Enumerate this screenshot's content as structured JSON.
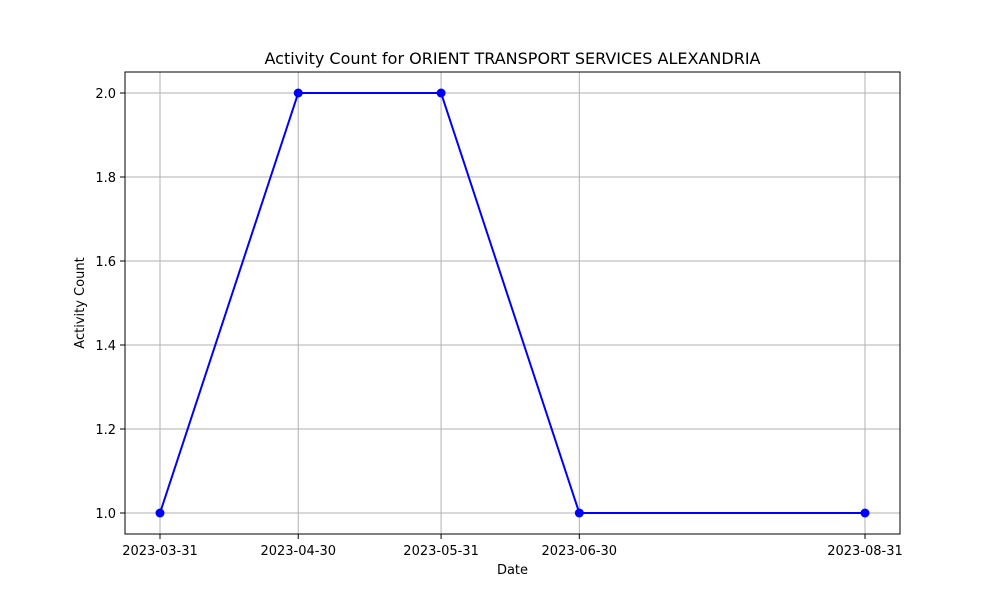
{
  "chart_data": {
    "type": "line",
    "title": "Activity Count for ORIENT TRANSPORT SERVICES ALEXANDRIA",
    "xlabel": "Date",
    "ylabel": "Activity Count",
    "x": [
      "2023-03-31",
      "2023-04-30",
      "2023-05-31",
      "2023-06-30",
      "2023-08-31"
    ],
    "xticks": [
      "2023-03-31",
      "2023-04-30",
      "2023-05-31",
      "2023-06-30",
      "2023-08-31"
    ],
    "yticks": [
      1.0,
      1.2,
      1.4,
      1.6,
      1.8,
      2.0
    ],
    "ylim": [
      0.95,
      2.05
    ],
    "series": [
      {
        "values": [
          1,
          2,
          2,
          1,
          1
        ],
        "color": "#0000ff",
        "marker": "circle"
      }
    ],
    "grid": true,
    "colors": {
      "grid": "#b0b0b0",
      "axis": "#000000",
      "line": "#0000ff"
    }
  }
}
